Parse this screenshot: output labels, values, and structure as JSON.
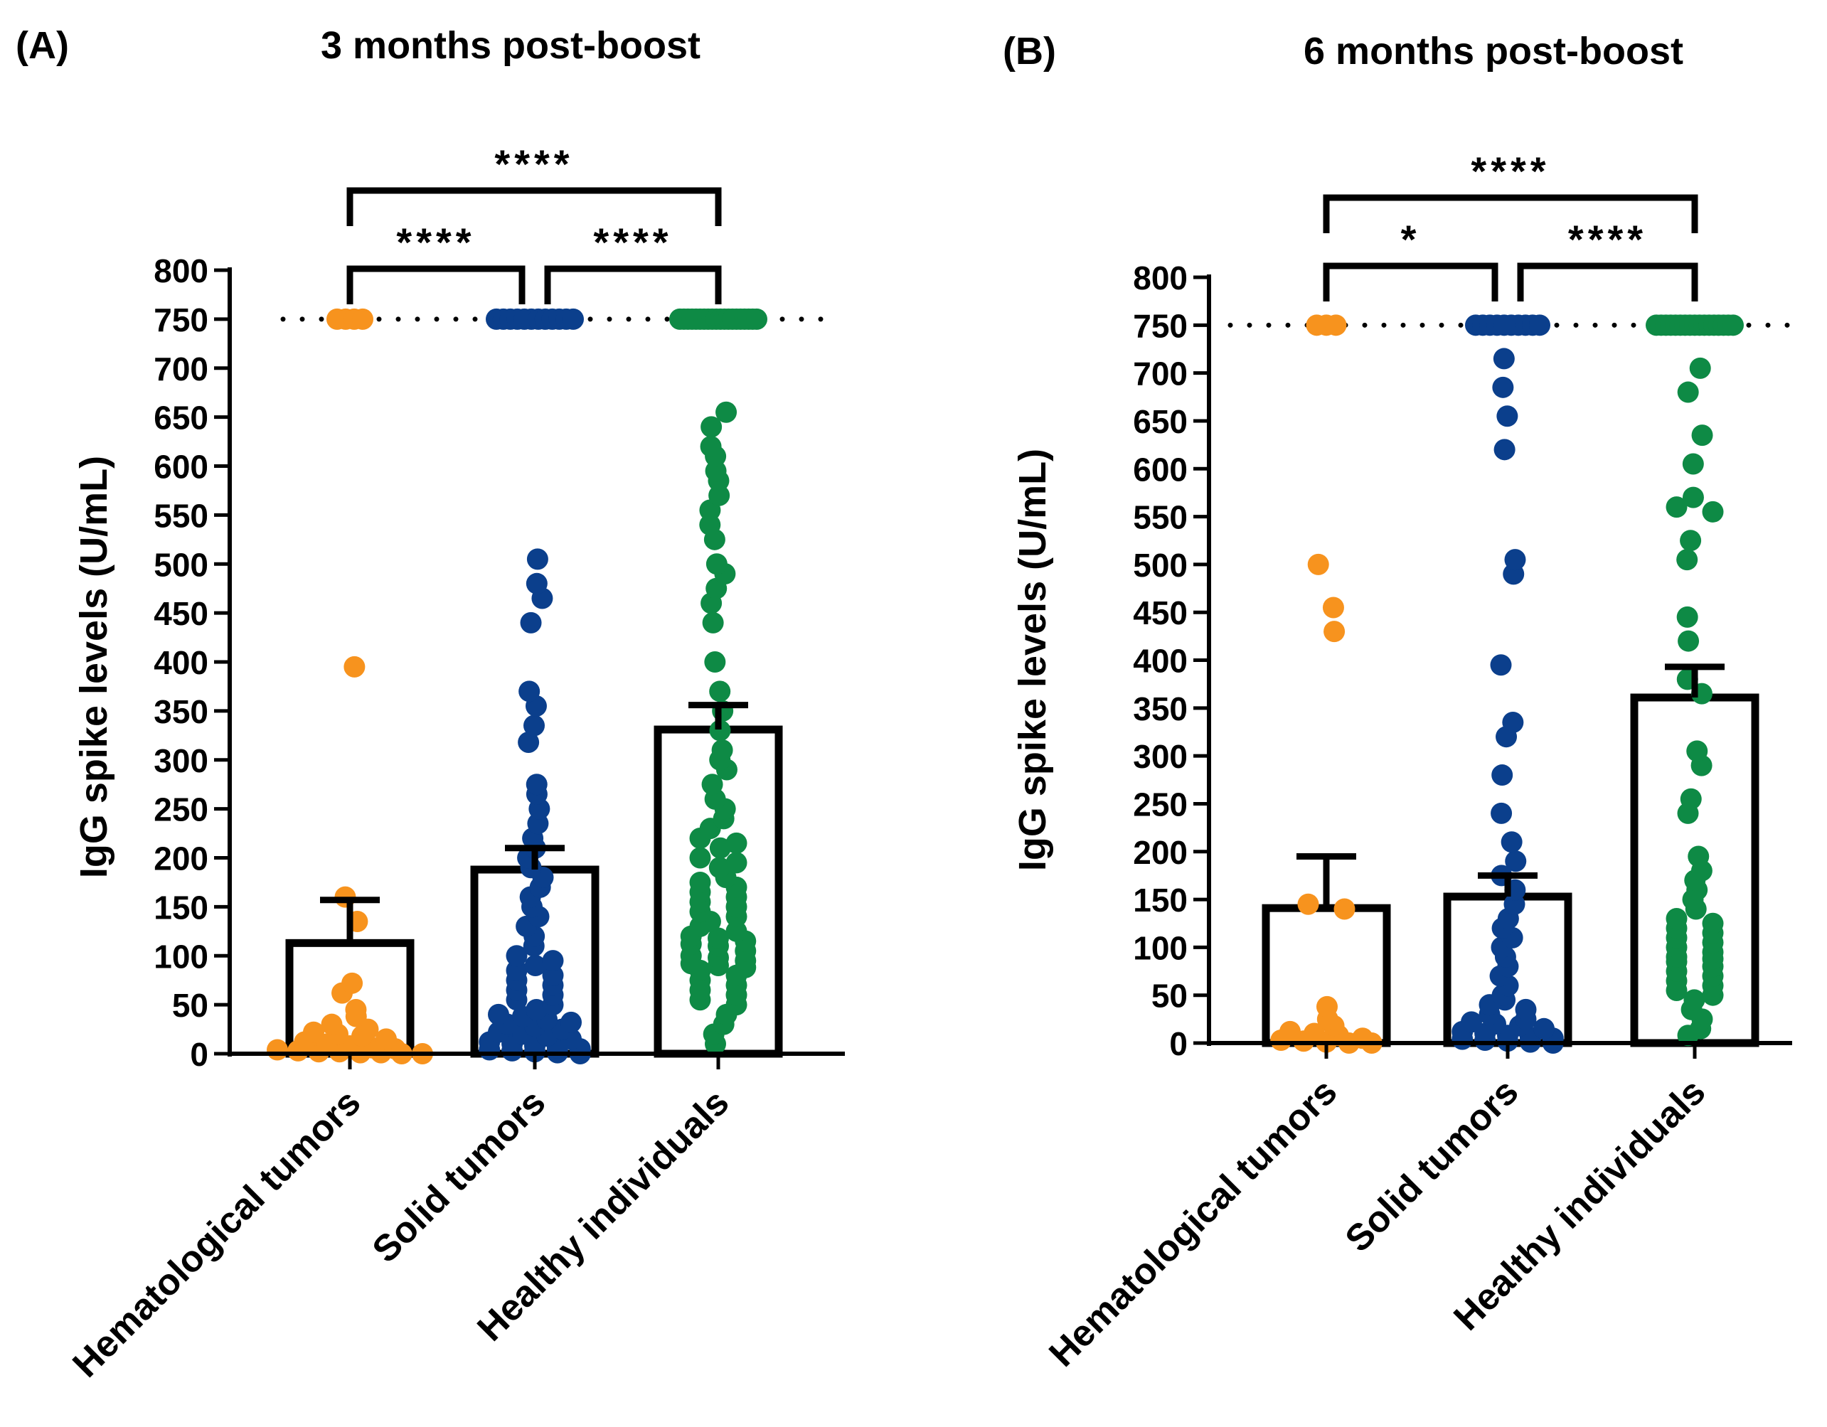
{
  "chart_data": [
    {
      "type": "bar",
      "panel_label": "(A)",
      "title": "3 months post-boost",
      "ylabel": "IgG spike levels (U/mL)",
      "xlabel": "",
      "ylim": [
        0,
        800
      ],
      "yticks": [
        0,
        50,
        100,
        150,
        200,
        250,
        300,
        350,
        400,
        450,
        500,
        550,
        600,
        650,
        700,
        750,
        800
      ],
      "reference_line": {
        "value": 750,
        "style": "dotted"
      },
      "categories": [
        "Hematological tumors",
        "Solid tumors",
        "Healthy individuals"
      ],
      "colors": [
        "#F7931E",
        "#0B3F8C",
        "#0E8A45"
      ],
      "values": [
        113,
        188,
        331
      ],
      "errors": [
        44,
        22,
        25
      ],
      "points": [
        [
          750,
          750,
          750,
          750,
          395,
          160,
          135,
          72,
          62,
          45,
          38,
          30,
          25,
          22,
          20,
          18,
          15,
          12,
          10,
          8,
          6,
          5,
          4,
          3,
          2,
          2,
          1,
          1,
          0,
          0
        ],
        [
          750,
          750,
          750,
          750,
          750,
          750,
          750,
          750,
          750,
          750,
          750,
          750,
          505,
          480,
          465,
          440,
          370,
          355,
          335,
          318,
          275,
          265,
          250,
          235,
          220,
          210,
          200,
          190,
          180,
          170,
          160,
          150,
          140,
          130,
          120,
          110,
          100,
          95,
          90,
          85,
          80,
          75,
          70,
          65,
          60,
          55,
          50,
          45,
          40,
          38,
          35,
          32,
          30,
          28,
          25,
          22,
          20,
          18,
          15,
          12,
          10,
          8,
          6,
          5,
          4,
          3,
          2,
          1,
          0
        ],
        [
          750,
          750,
          750,
          750,
          750,
          750,
          750,
          750,
          750,
          750,
          750,
          750,
          750,
          750,
          750,
          750,
          750,
          750,
          750,
          750,
          655,
          640,
          620,
          610,
          595,
          585,
          570,
          555,
          540,
          525,
          500,
          490,
          475,
          460,
          440,
          400,
          370,
          350,
          330,
          310,
          300,
          290,
          275,
          260,
          250,
          240,
          230,
          220,
          215,
          210,
          200,
          195,
          190,
          180,
          175,
          170,
          165,
          160,
          155,
          150,
          145,
          140,
          135,
          130,
          125,
          120,
          118,
          115,
          112,
          110,
          105,
          100,
          98,
          95,
          92,
          90,
          88,
          85,
          80,
          75,
          70,
          65,
          60,
          55,
          50,
          40,
          30,
          20,
          10
        ]
      ],
      "significance": [
        {
          "pair": [
            0,
            1
          ],
          "label": "****"
        },
        {
          "pair": [
            1,
            2
          ],
          "label": "****"
        },
        {
          "pair": [
            0,
            2
          ],
          "label": "****"
        }
      ]
    },
    {
      "type": "bar",
      "panel_label": "(B)",
      "title": "6 months post-boost",
      "ylabel": "IgG spike levels (U/mL)",
      "xlabel": "",
      "ylim": [
        0,
        800
      ],
      "yticks": [
        0,
        50,
        100,
        150,
        200,
        250,
        300,
        350,
        400,
        450,
        500,
        550,
        600,
        650,
        700,
        750,
        800
      ],
      "reference_line": {
        "value": 750,
        "style": "dotted"
      },
      "categories": [
        "Hematological tumors",
        "Solid tumors",
        "Healthy individuals"
      ],
      "colors": [
        "#F7931E",
        "#0B3F8C",
        "#0E8A45"
      ],
      "values": [
        141,
        153,
        361
      ],
      "errors": [
        54,
        22,
        32
      ],
      "points": [
        [
          750,
          750,
          750,
          500,
          455,
          430,
          145,
          140,
          38,
          25,
          18,
          12,
          10,
          8,
          5,
          3,
          2,
          1,
          0,
          0
        ],
        [
          750,
          750,
          750,
          750,
          750,
          750,
          750,
          750,
          750,
          750,
          715,
          685,
          655,
          620,
          505,
          490,
          395,
          335,
          320,
          280,
          240,
          210,
          190,
          175,
          160,
          145,
          130,
          120,
          110,
          100,
          90,
          80,
          70,
          60,
          50,
          45,
          40,
          35,
          30,
          25,
          22,
          20,
          18,
          15,
          12,
          10,
          8,
          6,
          5,
          4,
          3,
          2,
          1,
          0
        ],
        [
          750,
          750,
          750,
          750,
          750,
          750,
          750,
          750,
          750,
          750,
          750,
          750,
          750,
          750,
          750,
          750,
          750,
          705,
          680,
          635,
          605,
          570,
          560,
          555,
          525,
          505,
          445,
          420,
          380,
          365,
          305,
          290,
          255,
          240,
          195,
          180,
          170,
          160,
          150,
          140,
          130,
          125,
          120,
          115,
          110,
          105,
          100,
          95,
          90,
          88,
          85,
          80,
          75,
          70,
          65,
          60,
          55,
          50,
          45,
          35,
          25,
          15,
          8
        ]
      ],
      "significance": [
        {
          "pair": [
            0,
            1
          ],
          "label": "*"
        },
        {
          "pair": [
            1,
            2
          ],
          "label": "****"
        },
        {
          "pair": [
            0,
            2
          ],
          "label": "****"
        }
      ]
    }
  ]
}
